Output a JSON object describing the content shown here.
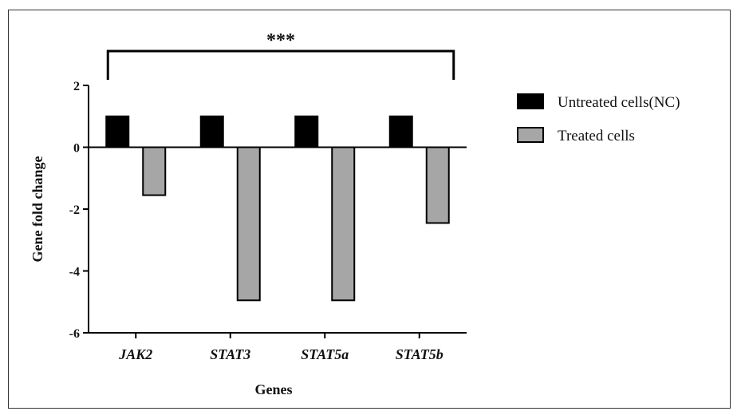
{
  "chart_data": {
    "type": "bar",
    "categories": [
      "JAK2",
      "STAT3",
      "STAT5a",
      "STAT5b"
    ],
    "series": [
      {
        "name": "Untreated cells(NC)",
        "color": "#000000",
        "values": [
          1,
          1,
          1,
          1
        ]
      },
      {
        "name": "Treated cells",
        "color": "#a6a6a6",
        "values": [
          -1.55,
          -4.95,
          -4.95,
          -2.45
        ]
      }
    ],
    "xlabel": "Genes",
    "ylabel": "Gene fold change",
    "ylim": [
      -6,
      2
    ],
    "yticks": [
      2,
      0,
      -2,
      -4,
      -6
    ],
    "yticks_labels": [
      "2",
      "0",
      "-2",
      "-4",
      "-6"
    ],
    "significance": {
      "label": "***",
      "from": "JAK2",
      "to": "STAT5b"
    },
    "legend": {
      "position": "right"
    },
    "grid": false
  }
}
